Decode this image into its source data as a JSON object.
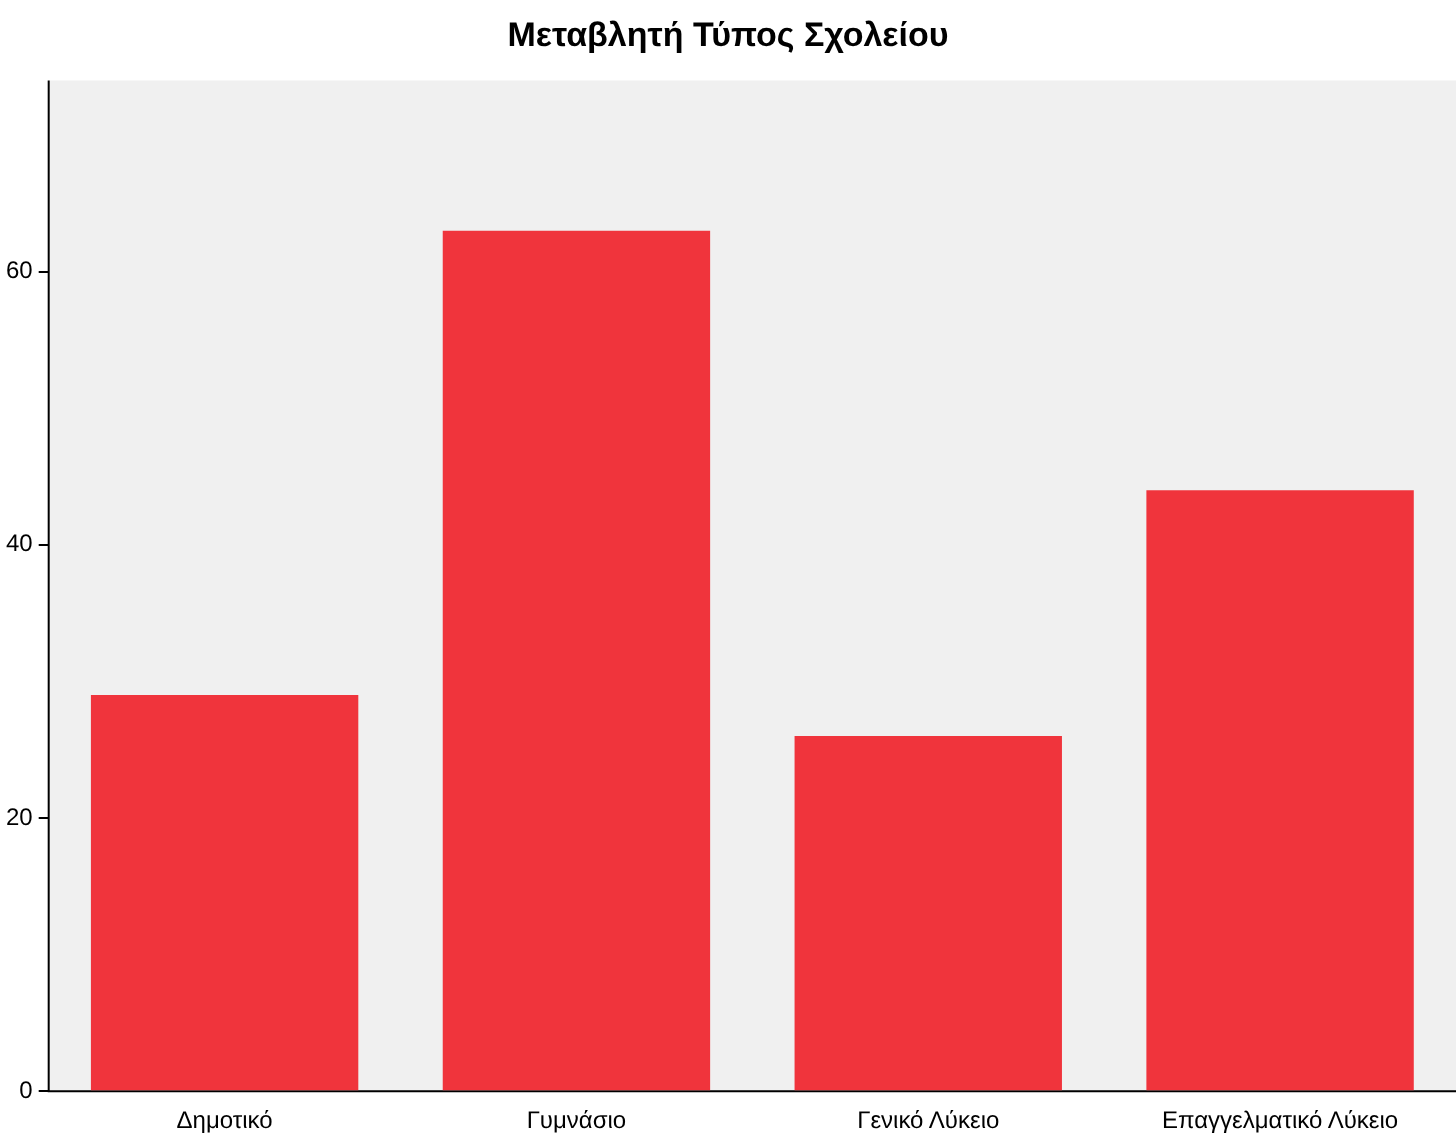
{
  "chart_data": {
    "type": "bar",
    "title": "Μεταβλητή Τύπος Σχολείου",
    "categories": [
      "Δημοτικό",
      "Γυμνάσιο",
      "Γενικό Λύκειο",
      "Επαγγελματικό Λύκειο"
    ],
    "values": [
      29,
      63,
      26,
      44
    ],
    "color": "#f0343c",
    "ylim": [
      0,
      74
    ],
    "yticks": [
      0,
      20,
      40,
      60
    ],
    "grid": false,
    "legend": false
  }
}
